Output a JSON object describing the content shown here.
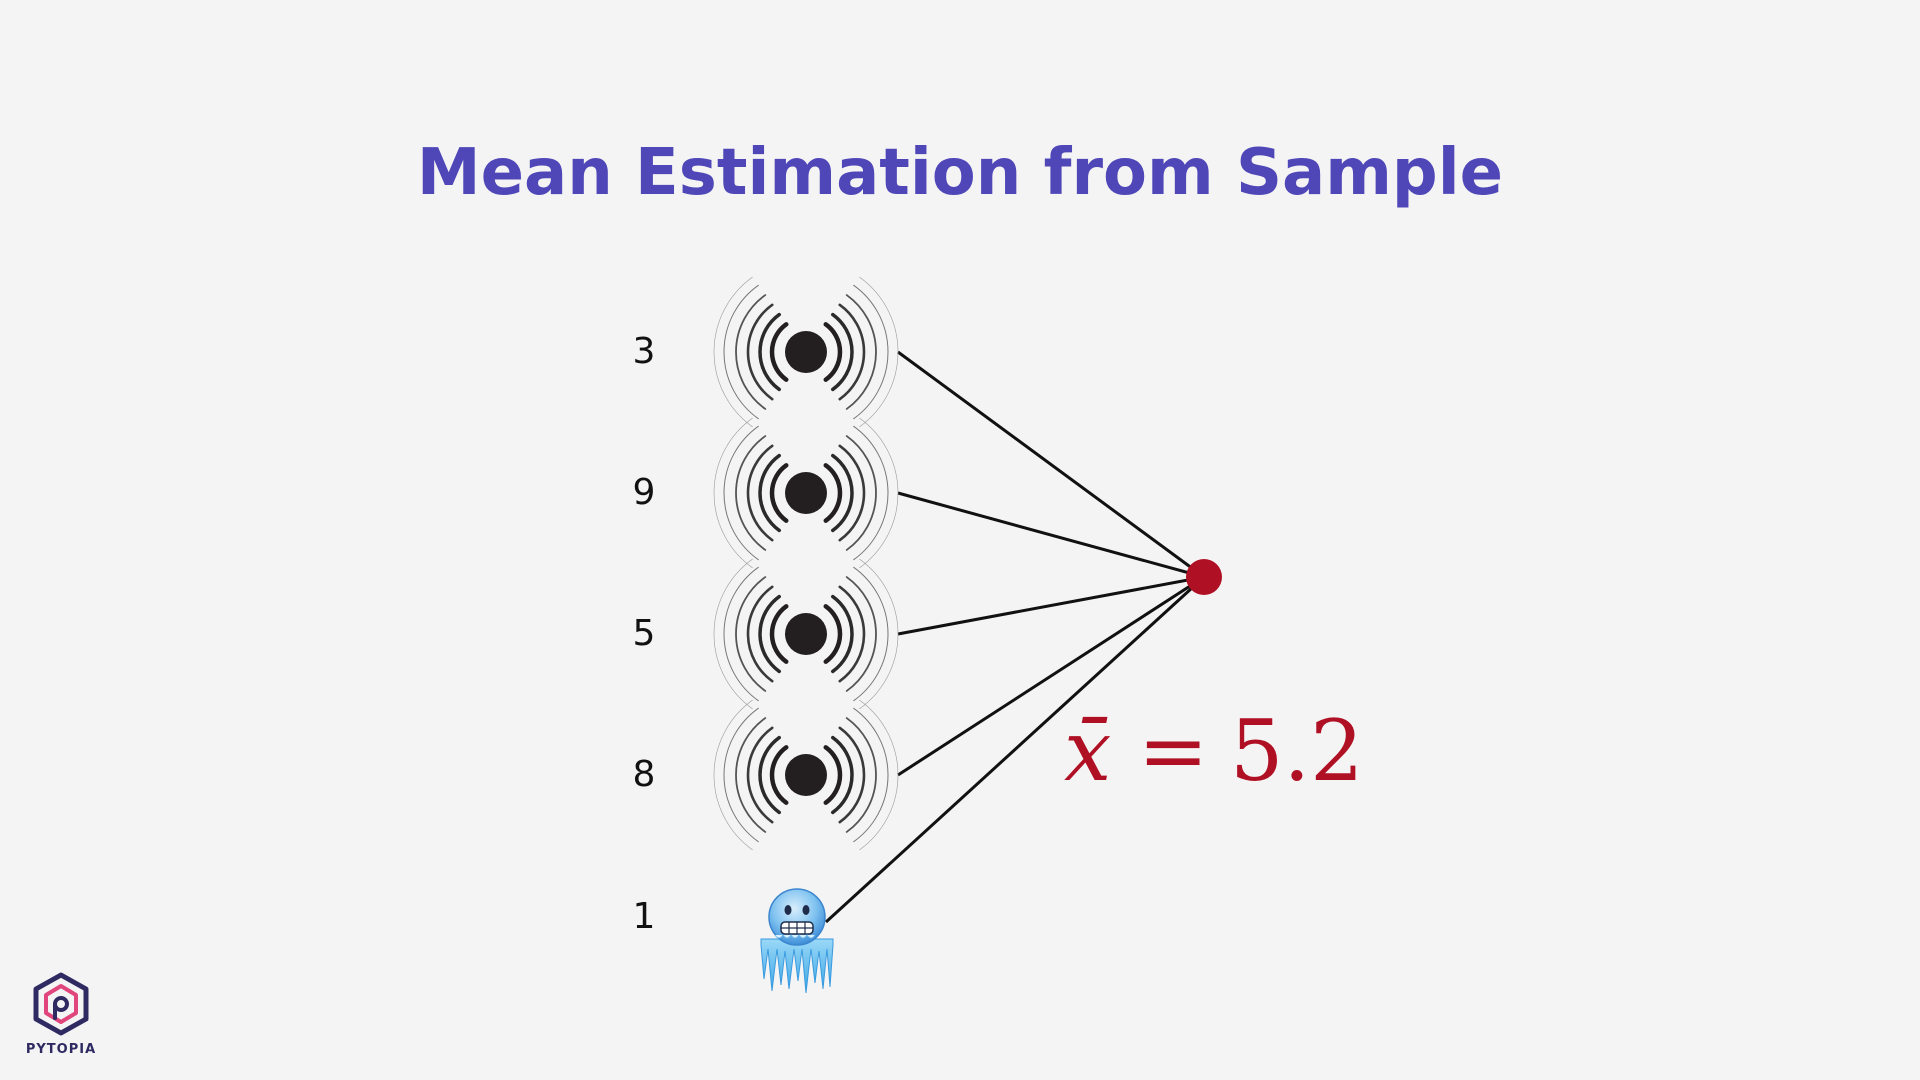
{
  "title": "Mean Estimation from Sample",
  "samples": [
    {
      "value": "3",
      "icon": "radiating-dot-icon"
    },
    {
      "value": "9",
      "icon": "radiating-dot-icon"
    },
    {
      "value": "5",
      "icon": "radiating-dot-icon"
    },
    {
      "value": "8",
      "icon": "radiating-dot-icon"
    },
    {
      "value": "1",
      "icon": "frozen-face-icon"
    }
  ],
  "mean": {
    "symbol": "x̄",
    "equals": "=",
    "value": "5.2"
  },
  "logo": {
    "text": "PYTOPIA"
  },
  "colors": {
    "title": "#4f46b8",
    "mean": "#b01024",
    "dot": "#231f20",
    "background": "#f4f4f4"
  }
}
